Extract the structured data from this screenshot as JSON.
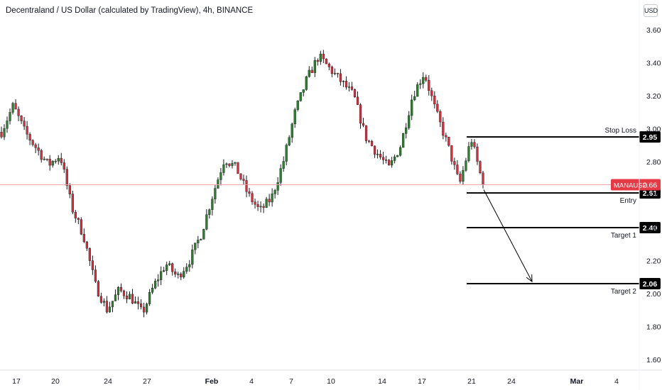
{
  "header": {
    "title": "Decentraland / US Dollar (calculated by TradingView), 4h, BINANCE",
    "currency": "USD"
  },
  "colors": {
    "up": "#2e7d32",
    "down": "#d32f3f",
    "wick": "#1a1a1a",
    "price_line": "#f5a6a6",
    "level": "#000000",
    "price_tag": "#e53945"
  },
  "chart_data": {
    "type": "candlestick",
    "ylim": [
      1.55,
      3.72
    ],
    "y_ticks": [
      "1.60",
      "1.80",
      "2.00",
      "2.20",
      "2.40",
      "2.60",
      "2.80",
      "3.00",
      "3.20",
      "3.40",
      "3.60"
    ],
    "x_ticks": [
      "17",
      "20",
      "24",
      "27",
      "Feb",
      "4",
      "7",
      "10",
      "14",
      "17",
      "21",
      "24",
      "Mar",
      "4"
    ],
    "current_price": {
      "symbol": "MANAUSD",
      "value": "2.66"
    },
    "levels": [
      {
        "name": "Stop Loss",
        "value": 2.95,
        "label": "2.95"
      },
      {
        "name": "Entry",
        "value": 2.61,
        "label": "2.61"
      },
      {
        "name": "Target 1",
        "value": 2.4,
        "label": "2.40"
      },
      {
        "name": "Target 2",
        "value": 2.06,
        "label": "2.06"
      }
    ],
    "projection_arrow": {
      "from": 2.63,
      "to": 2.06
    },
    "price_path": [
      {
        "x": "16",
        "y": 2.98
      },
      {
        "x": "16.5",
        "y": 3.14
      },
      {
        "x": "17",
        "y": 2.98
      },
      {
        "x": "18",
        "y": 2.88
      },
      {
        "x": "19",
        "y": 2.78
      },
      {
        "x": "20",
        "y": 2.84
      },
      {
        "x": "20.5",
        "y": 2.52
      },
      {
        "x": "21",
        "y": 2.35
      },
      {
        "x": "21.5",
        "y": 2.05
      },
      {
        "x": "22",
        "y": 1.9
      },
      {
        "x": "23",
        "y": 2.02
      },
      {
        "x": "24",
        "y": 1.98
      },
      {
        "x": "24.5",
        "y": 1.88
      },
      {
        "x": "25",
        "y": 2.05
      },
      {
        "x": "26",
        "y": 2.18
      },
      {
        "x": "27",
        "y": 2.1
      },
      {
        "x": "28",
        "y": 2.2
      },
      {
        "x": "29",
        "y": 2.36
      },
      {
        "x": "30",
        "y": 2.6
      },
      {
        "x": "31",
        "y": 2.82
      },
      {
        "x": "Feb",
        "y": 2.76
      },
      {
        "x": "2",
        "y": 2.6
      },
      {
        "x": "3",
        "y": 2.5
      },
      {
        "x": "4",
        "y": 2.58
      },
      {
        "x": "5",
        "y": 2.8
      },
      {
        "x": "6",
        "y": 3.1
      },
      {
        "x": "7",
        "y": 3.3
      },
      {
        "x": "8",
        "y": 3.44
      },
      {
        "x": "9",
        "y": 3.36
      },
      {
        "x": "10",
        "y": 3.28
      },
      {
        "x": "11",
        "y": 3.2
      },
      {
        "x": "12",
        "y": 2.95
      },
      {
        "x": "13",
        "y": 2.85
      },
      {
        "x": "14",
        "y": 2.76
      },
      {
        "x": "15",
        "y": 2.9
      },
      {
        "x": "16",
        "y": 3.2
      },
      {
        "x": "17",
        "y": 3.34
      },
      {
        "x": "18",
        "y": 3.1
      },
      {
        "x": "19",
        "y": 2.9
      },
      {
        "x": "20",
        "y": 2.66
      },
      {
        "x": "20.5",
        "y": 2.94
      },
      {
        "x": "21",
        "y": 2.66
      }
    ]
  }
}
